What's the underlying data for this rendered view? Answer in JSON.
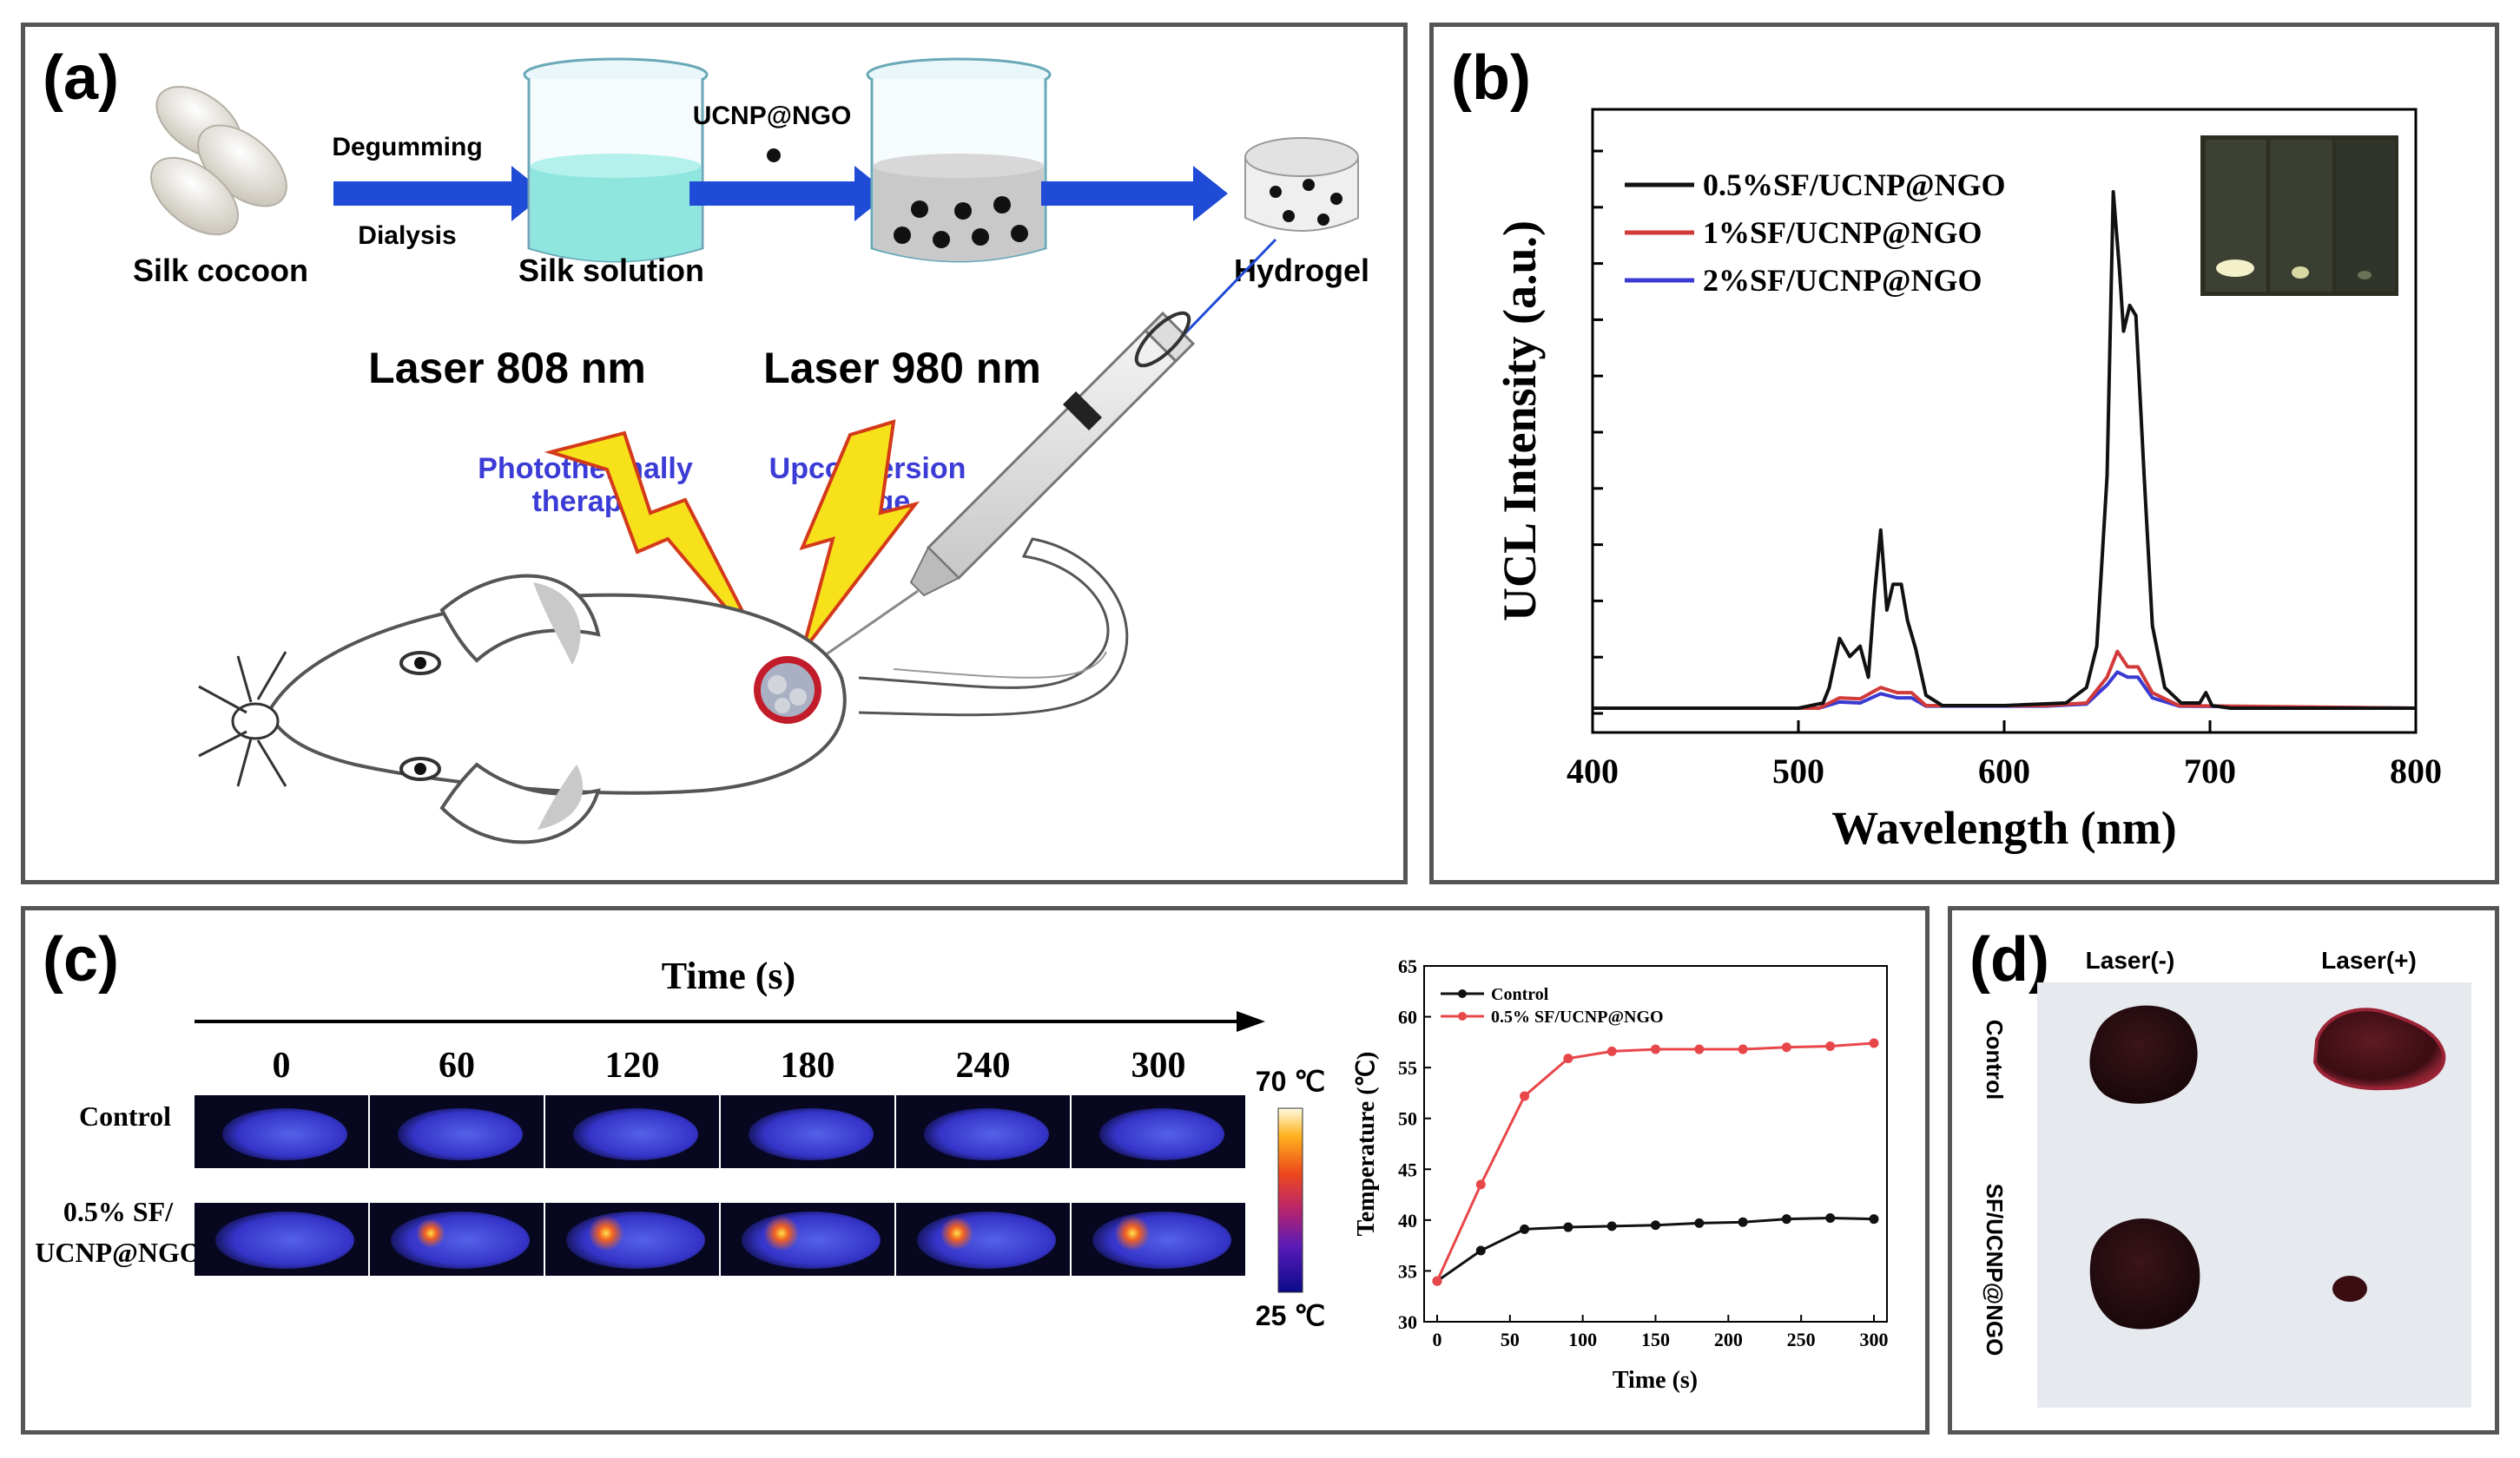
{
  "panel_a": {
    "label": "(a)",
    "silk_cocoon": "Silk cocoon",
    "degumming": "Degumming",
    "dialysis": "Dialysis",
    "silk_solution": "Silk solution",
    "additive": "UCNP@NGO",
    "hydrogel": "Hydrogel",
    "laser_808": "Laser 808 nm",
    "laser_980": "Laser 980 nm",
    "photothermal_l1": "Photothermally",
    "photothermal_l2": "therapy",
    "upconversion_l1": "Upconversion",
    "upconversion_l2": "image"
  },
  "panel_b": {
    "label": "(b)",
    "inset_label": "vials photo inset"
  },
  "panel_c": {
    "label": "(c)",
    "time_title": "Time (s)",
    "times": [
      "0",
      "60",
      "120",
      "180",
      "240",
      "300"
    ],
    "row_control": "Control",
    "row_sample_l1": "0.5% SF/",
    "row_sample_l2": "UCNP@NGO",
    "scale_max": "70 ℃",
    "scale_min": "25 ℃"
  },
  "panel_d": {
    "label": "(d)",
    "col_minus": "Laser(-)",
    "col_plus": "Laser(+)",
    "row_control": "Control",
    "row_sample": "SF/UCNP@NGO"
  },
  "chart_data": [
    {
      "type": "line",
      "id": "ucl_spectrum",
      "title": "",
      "xlabel": "Wavelength (nm)",
      "ylabel": "UCL Intensity (a.u.)",
      "xlim": [
        400,
        800
      ],
      "ylim": [
        0,
        1.0
      ],
      "xticks": [
        400,
        500,
        600,
        700,
        800
      ],
      "legend_position": "top-left",
      "series": [
        {
          "name": "0.5%SF/UCNP@NGO",
          "color": "#111111",
          "x": [
            400,
            500,
            512,
            515,
            520,
            525,
            530,
            534,
            537,
            540,
            543,
            546,
            550,
            553,
            557,
            562,
            570,
            600,
            630,
            640,
            645,
            650,
            653,
            656,
            658,
            661,
            664,
            668,
            672,
            678,
            686,
            695,
            698,
            701,
            710,
            800
          ],
          "y": [
            0.0,
            0.0,
            0.01,
            0.04,
            0.135,
            0.1,
            0.12,
            0.06,
            0.22,
            0.345,
            0.19,
            0.24,
            0.24,
            0.17,
            0.115,
            0.025,
            0.005,
            0.005,
            0.01,
            0.04,
            0.12,
            0.45,
            1.0,
            0.85,
            0.73,
            0.78,
            0.76,
            0.45,
            0.16,
            0.04,
            0.01,
            0.01,
            0.03,
            0.005,
            0.0,
            0.0
          ]
        },
        {
          "name": "1%SF/UCNP@NGO",
          "color": "#d23a3a",
          "x": [
            400,
            510,
            520,
            530,
            540,
            548,
            555,
            562,
            620,
            640,
            650,
            655,
            660,
            665,
            672,
            685,
            800
          ],
          "y": [
            0.0,
            0.0,
            0.02,
            0.018,
            0.04,
            0.03,
            0.03,
            0.005,
            0.005,
            0.01,
            0.06,
            0.11,
            0.08,
            0.08,
            0.03,
            0.005,
            0.0
          ]
        },
        {
          "name": "2%SF/UCNP@NGO",
          "color": "#3a3ad2",
          "x": [
            400,
            510,
            520,
            530,
            540,
            548,
            555,
            562,
            620,
            640,
            650,
            655,
            660,
            665,
            672,
            685,
            800
          ],
          "y": [
            0.0,
            0.0,
            0.012,
            0.01,
            0.028,
            0.02,
            0.02,
            0.004,
            0.004,
            0.008,
            0.045,
            0.07,
            0.06,
            0.06,
            0.02,
            0.004,
            0.0
          ]
        }
      ]
    },
    {
      "type": "line",
      "id": "temperature",
      "title": "",
      "xlabel": "Time (s)",
      "ylabel": "Temperature (℃)",
      "xlim": [
        0,
        300
      ],
      "ylim": [
        30,
        65
      ],
      "xticks": [
        0,
        50,
        100,
        150,
        200,
        250,
        300
      ],
      "yticks": [
        30,
        35,
        40,
        45,
        50,
        55,
        60,
        65
      ],
      "legend_position": "top-left",
      "series": [
        {
          "name": "Control",
          "color": "#111111",
          "x": [
            0,
            30,
            60,
            90,
            120,
            150,
            180,
            210,
            240,
            270,
            300
          ],
          "y": [
            34,
            37,
            39.1,
            39.3,
            39.4,
            39.5,
            39.7,
            39.8,
            40.1,
            40.2,
            40.1
          ]
        },
        {
          "name": "0.5% SF/UCNP@NGO",
          "color": "#e8474a",
          "x": [
            0,
            30,
            60,
            90,
            120,
            150,
            180,
            210,
            240,
            270,
            300
          ],
          "y": [
            34,
            43.5,
            52.2,
            55.9,
            56.6,
            56.8,
            56.8,
            56.8,
            57.0,
            57.1,
            57.4
          ]
        }
      ]
    }
  ]
}
